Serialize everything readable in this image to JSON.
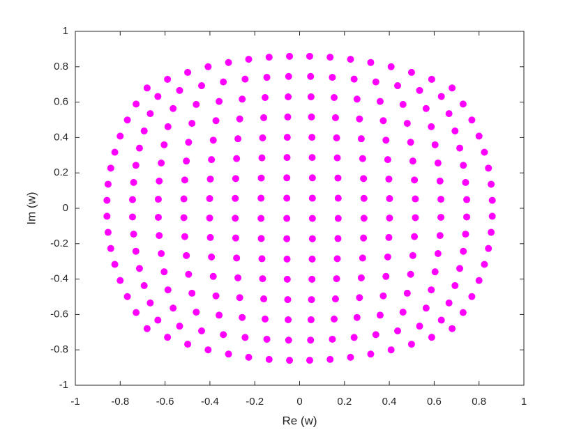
{
  "chart_data": {
    "type": "scatter",
    "xlabel": "Re (w)",
    "ylabel": "Im (w)",
    "color": "#ff00ff",
    "xlim": [
      -1,
      1
    ],
    "ylim": [
      -1,
      1
    ],
    "xticks": [
      -1,
      -0.8,
      -0.6,
      -0.4,
      -0.2,
      0,
      0.2,
      0.4,
      0.6,
      0.8,
      1
    ],
    "yticks": [
      -1,
      -0.8,
      -0.6,
      -0.4,
      -0.2,
      0,
      0.2,
      0.4,
      0.6,
      0.8,
      1
    ],
    "x": [
      -0.68,
      -0.589,
      -0.499,
      -0.408,
      -0.317,
      -0.227,
      -0.136,
      -0.045,
      0.045,
      0.136,
      0.227,
      0.317,
      0.408,
      0.499,
      0.589,
      0.68,
      -0.729,
      -0.632,
      -0.535,
      -0.437,
      -0.34,
      -0.243,
      -0.146,
      -0.049,
      0.049,
      0.146,
      0.243,
      0.34,
      0.437,
      0.535,
      0.632,
      0.729,
      -0.768,
      -0.666,
      -0.564,
      -0.461,
      -0.359,
      -0.256,
      -0.154,
      -0.051,
      0.051,
      0.154,
      0.256,
      0.359,
      0.461,
      0.564,
      0.666,
      0.768,
      -0.8,
      -0.693,
      -0.587,
      -0.48,
      -0.373,
      -0.267,
      -0.16,
      -0.053,
      0.053,
      0.16,
      0.267,
      0.373,
      0.48,
      0.587,
      0.693,
      0.8,
      -0.824,
      -0.714,
      -0.604,
      -0.495,
      -0.385,
      -0.275,
      -0.165,
      -0.055,
      0.055,
      0.165,
      0.275,
      0.385,
      0.495,
      0.604,
      0.714,
      0.824,
      -0.842,
      -0.73,
      -0.617,
      -0.505,
      -0.393,
      -0.281,
      -0.168,
      -0.056,
      0.056,
      0.168,
      0.281,
      0.393,
      0.505,
      0.617,
      0.73,
      0.842,
      -0.854,
      -0.74,
      -0.626,
      -0.512,
      -0.398,
      -0.285,
      -0.171,
      -0.057,
      0.057,
      0.171,
      0.285,
      0.398,
      0.512,
      0.626,
      0.74,
      0.854,
      -0.859,
      -0.745,
      -0.63,
      -0.516,
      -0.401,
      -0.287,
      -0.172,
      -0.057,
      0.057,
      0.172,
      0.287,
      0.401,
      0.516,
      0.63,
      0.745,
      0.859,
      -0.859,
      -0.745,
      -0.63,
      -0.516,
      -0.401,
      -0.287,
      -0.172,
      -0.057,
      0.057,
      0.172,
      0.287,
      0.401,
      0.516,
      0.63,
      0.745,
      0.859,
      -0.854,
      -0.74,
      -0.626,
      -0.512,
      -0.398,
      -0.285,
      -0.171,
      -0.057,
      0.057,
      0.171,
      0.285,
      0.398,
      0.512,
      0.626,
      0.74,
      0.854,
      -0.842,
      -0.73,
      -0.617,
      -0.505,
      -0.393,
      -0.281,
      -0.168,
      -0.056,
      0.056,
      0.168,
      0.281,
      0.393,
      0.505,
      0.617,
      0.73,
      0.842,
      -0.824,
      -0.714,
      -0.604,
      -0.495,
      -0.385,
      -0.275,
      -0.165,
      -0.055,
      0.055,
      0.165,
      0.275,
      0.385,
      0.495,
      0.604,
      0.714,
      0.824,
      -0.8,
      -0.693,
      -0.587,
      -0.48,
      -0.373,
      -0.267,
      -0.16,
      -0.053,
      0.053,
      0.16,
      0.267,
      0.373,
      0.48,
      0.587,
      0.693,
      0.8,
      -0.768,
      -0.666,
      -0.564,
      -0.461,
      -0.359,
      -0.256,
      -0.154,
      -0.051,
      0.051,
      0.154,
      0.256,
      0.359,
      0.461,
      0.564,
      0.666,
      0.768,
      -0.729,
      -0.632,
      -0.535,
      -0.437,
      -0.34,
      -0.243,
      -0.146,
      -0.049,
      0.049,
      0.146,
      0.243,
      0.34,
      0.437,
      0.535,
      0.632,
      0.729,
      -0.68,
      -0.589,
      -0.499,
      -0.408,
      -0.317,
      -0.227,
      -0.136,
      -0.045,
      0.045,
      0.136,
      0.227,
      0.317,
      0.408,
      0.499,
      0.589,
      0.68
    ],
    "y": [
      -0.68,
      -0.729,
      -0.768,
      -0.8,
      -0.824,
      -0.842,
      -0.854,
      -0.859,
      -0.859,
      -0.854,
      -0.842,
      -0.824,
      -0.8,
      -0.768,
      -0.729,
      -0.68,
      -0.589,
      -0.632,
      -0.666,
      -0.693,
      -0.714,
      -0.73,
      -0.74,
      -0.745,
      -0.745,
      -0.74,
      -0.73,
      -0.714,
      -0.693,
      -0.666,
      -0.632,
      -0.589,
      -0.499,
      -0.535,
      -0.564,
      -0.587,
      -0.604,
      -0.617,
      -0.626,
      -0.63,
      -0.63,
      -0.626,
      -0.617,
      -0.604,
      -0.587,
      -0.564,
      -0.535,
      -0.499,
      -0.408,
      -0.437,
      -0.461,
      -0.48,
      -0.495,
      -0.505,
      -0.512,
      -0.516,
      -0.516,
      -0.512,
      -0.505,
      -0.495,
      -0.48,
      -0.461,
      -0.437,
      -0.408,
      -0.317,
      -0.34,
      -0.359,
      -0.373,
      -0.385,
      -0.393,
      -0.398,
      -0.401,
      -0.401,
      -0.398,
      -0.393,
      -0.385,
      -0.373,
      -0.359,
      -0.34,
      -0.317,
      -0.227,
      -0.243,
      -0.256,
      -0.267,
      -0.275,
      -0.281,
      -0.285,
      -0.287,
      -0.287,
      -0.285,
      -0.281,
      -0.275,
      -0.267,
      -0.256,
      -0.243,
      -0.227,
      -0.136,
      -0.146,
      -0.154,
      -0.16,
      -0.165,
      -0.168,
      -0.171,
      -0.172,
      -0.172,
      -0.171,
      -0.168,
      -0.165,
      -0.16,
      -0.154,
      -0.146,
      -0.136,
      -0.045,
      -0.049,
      -0.051,
      -0.053,
      -0.055,
      -0.056,
      -0.057,
      -0.057,
      -0.057,
      -0.057,
      -0.056,
      -0.055,
      -0.053,
      -0.051,
      -0.049,
      -0.045,
      0.045,
      0.049,
      0.051,
      0.053,
      0.055,
      0.056,
      0.057,
      0.057,
      0.057,
      0.057,
      0.056,
      0.055,
      0.053,
      0.051,
      0.049,
      0.045,
      0.136,
      0.146,
      0.154,
      0.16,
      0.165,
      0.168,
      0.171,
      0.172,
      0.172,
      0.171,
      0.168,
      0.165,
      0.16,
      0.154,
      0.146,
      0.136,
      0.227,
      0.243,
      0.256,
      0.267,
      0.275,
      0.281,
      0.285,
      0.287,
      0.287,
      0.285,
      0.281,
      0.275,
      0.267,
      0.256,
      0.243,
      0.227,
      0.317,
      0.34,
      0.359,
      0.373,
      0.385,
      0.393,
      0.398,
      0.401,
      0.401,
      0.398,
      0.393,
      0.385,
      0.373,
      0.359,
      0.34,
      0.317,
      0.408,
      0.437,
      0.461,
      0.48,
      0.495,
      0.505,
      0.512,
      0.516,
      0.516,
      0.512,
      0.505,
      0.495,
      0.48,
      0.461,
      0.437,
      0.408,
      0.499,
      0.535,
      0.564,
      0.587,
      0.604,
      0.617,
      0.626,
      0.63,
      0.63,
      0.626,
      0.617,
      0.604,
      0.587,
      0.564,
      0.535,
      0.499,
      0.589,
      0.632,
      0.666,
      0.693,
      0.714,
      0.73,
      0.74,
      0.745,
      0.745,
      0.74,
      0.73,
      0.714,
      0.693,
      0.666,
      0.632,
      0.589,
      0.68,
      0.729,
      0.768,
      0.8,
      0.824,
      0.842,
      0.854,
      0.859,
      0.859,
      0.854,
      0.842,
      0.824,
      0.8,
      0.768,
      0.729,
      0.68
    ]
  }
}
